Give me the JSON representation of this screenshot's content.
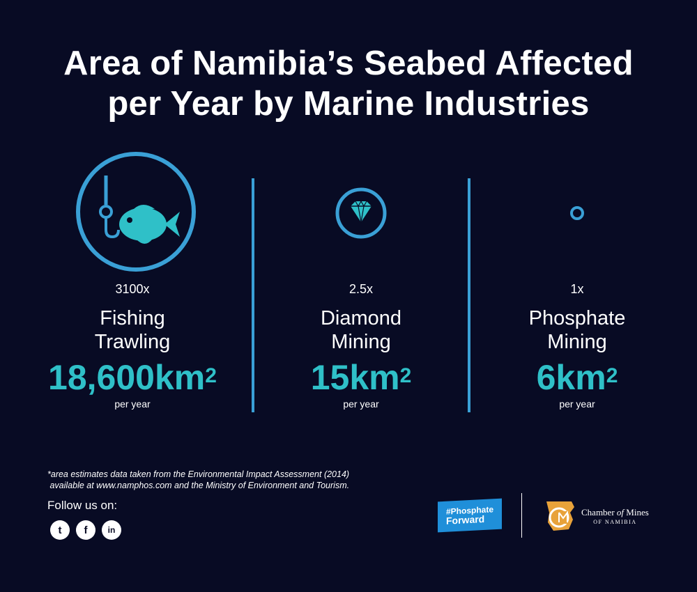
{
  "title": {
    "line1": "Area of Namibia’s Seabed Affected",
    "line2": "per Year by Marine Industries"
  },
  "columns": [
    {
      "icon": "fish-hook-icon",
      "multiplier": "3100x",
      "name_line1": "Fishing",
      "name_line2": "Trawling",
      "value": "18,600km",
      "sup": "2",
      "unit": "per year"
    },
    {
      "icon": "diamond-icon",
      "multiplier": "2.5x",
      "name_line1": "Diamond",
      "name_line2": "Mining",
      "value": "15km",
      "sup": "2",
      "unit": "per year"
    },
    {
      "icon": "small-circle-icon",
      "multiplier": "1x",
      "name_line1": "Phosphate",
      "name_line2": "Mining",
      "value": "6km",
      "sup": "2",
      "unit": "per year"
    }
  ],
  "footnote": {
    "line1": "*area estimates data taken from the Environmental Impact Assessment (2014)",
    "line2": " available at www.namphos.com and the Ministry of Environment and Tourism."
  },
  "follow_label": "Follow us on:",
  "social": [
    {
      "icon": "twitter-icon",
      "glyph": "t"
    },
    {
      "icon": "facebook-icon",
      "glyph": "f"
    },
    {
      "icon": "linkedin-icon",
      "glyph": "in"
    }
  ],
  "logos": {
    "phosphate_forward_line1": "#Phosphate",
    "phosphate_forward_line2": "Forward",
    "chamber_name_a": "Chamber ",
    "chamber_name_of": "of",
    "chamber_name_b": " Mines",
    "chamber_sub": "OF NAMIBIA"
  },
  "colors": {
    "background": "#080b24",
    "accent_blue": "#3aa0d6",
    "accent_teal": "#2fc0c8"
  }
}
